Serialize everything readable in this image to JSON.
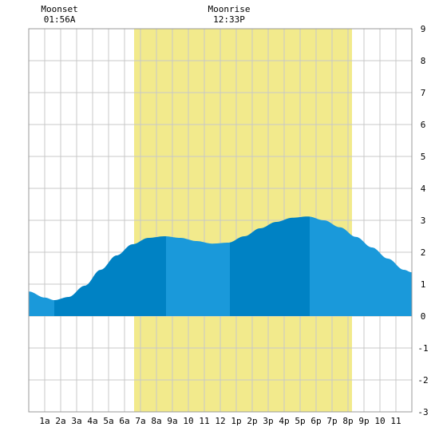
{
  "chart_data": {
    "type": "area",
    "x_unit": "hour",
    "x_range": [
      0,
      24
    ],
    "ylim": [
      -3,
      9
    ],
    "y_ticks": [
      -3,
      -2,
      -1,
      0,
      1,
      2,
      3,
      4,
      5,
      6,
      7,
      8,
      9
    ],
    "x_ticks": [
      {
        "hour": 1,
        "label": "1a"
      },
      {
        "hour": 2,
        "label": "2a"
      },
      {
        "hour": 3,
        "label": "3a"
      },
      {
        "hour": 4,
        "label": "4a"
      },
      {
        "hour": 5,
        "label": "5a"
      },
      {
        "hour": 6,
        "label": "6a"
      },
      {
        "hour": 7,
        "label": "7a"
      },
      {
        "hour": 8,
        "label": "8a"
      },
      {
        "hour": 9,
        "label": "9a"
      },
      {
        "hour": 10,
        "label": "10"
      },
      {
        "hour": 11,
        "label": "11"
      },
      {
        "hour": 12,
        "label": "12"
      },
      {
        "hour": 13,
        "label": "1p"
      },
      {
        "hour": 14,
        "label": "2p"
      },
      {
        "hour": 15,
        "label": "3p"
      },
      {
        "hour": 16,
        "label": "4p"
      },
      {
        "hour": 17,
        "label": "5p"
      },
      {
        "hour": 18,
        "label": "6p"
      },
      {
        "hour": 19,
        "label": "7p"
      },
      {
        "hour": 20,
        "label": "8p"
      },
      {
        "hour": 21,
        "label": "9p"
      },
      {
        "hour": 22,
        "label": "10"
      },
      {
        "hour": 23,
        "label": "11"
      }
    ],
    "grid": true,
    "daylight": {
      "start_hour": 6.6,
      "end_hour": 20.25,
      "color": "#f2ea8c"
    },
    "tide_points": [
      {
        "x": 0,
        "y": 0.77
      },
      {
        "x": 1,
        "y": 0.58
      },
      {
        "x": 1.6,
        "y": 0.5
      },
      {
        "x": 2.5,
        "y": 0.6
      },
      {
        "x": 3.5,
        "y": 0.95
      },
      {
        "x": 4.5,
        "y": 1.45
      },
      {
        "x": 5.5,
        "y": 1.9
      },
      {
        "x": 6.5,
        "y": 2.25
      },
      {
        "x": 7.5,
        "y": 2.45
      },
      {
        "x": 8.5,
        "y": 2.5
      },
      {
        "x": 9.5,
        "y": 2.45
      },
      {
        "x": 10.5,
        "y": 2.35
      },
      {
        "x": 11.5,
        "y": 2.27
      },
      {
        "x": 12.5,
        "y": 2.3
      },
      {
        "x": 13.5,
        "y": 2.5
      },
      {
        "x": 14.5,
        "y": 2.75
      },
      {
        "x": 15.5,
        "y": 2.95
      },
      {
        "x": 16.5,
        "y": 3.08
      },
      {
        "x": 17.5,
        "y": 3.12
      },
      {
        "x": 18.5,
        "y": 3.0
      },
      {
        "x": 19.5,
        "y": 2.78
      },
      {
        "x": 20.5,
        "y": 2.48
      },
      {
        "x": 21.5,
        "y": 2.15
      },
      {
        "x": 22.5,
        "y": 1.8
      },
      {
        "x": 23.5,
        "y": 1.45
      },
      {
        "x": 24,
        "y": 1.37
      }
    ],
    "tide_bands": [
      {
        "from": 0,
        "to": 1.6,
        "color": "#1a99da"
      },
      {
        "from": 1.6,
        "to": 8.6,
        "color": "#0082c4"
      },
      {
        "from": 8.6,
        "to": 12.6,
        "color": "#1a99da"
      },
      {
        "from": 12.6,
        "to": 17.6,
        "color": "#0082c4"
      },
      {
        "from": 17.6,
        "to": 24,
        "color": "#1a99da"
      }
    ],
    "annotations": [
      {
        "hour": 1.93,
        "title": "Moonset",
        "time": "01:56A"
      },
      {
        "hour": 12.55,
        "title": "Moonrise",
        "time": "12:33P"
      }
    ]
  }
}
